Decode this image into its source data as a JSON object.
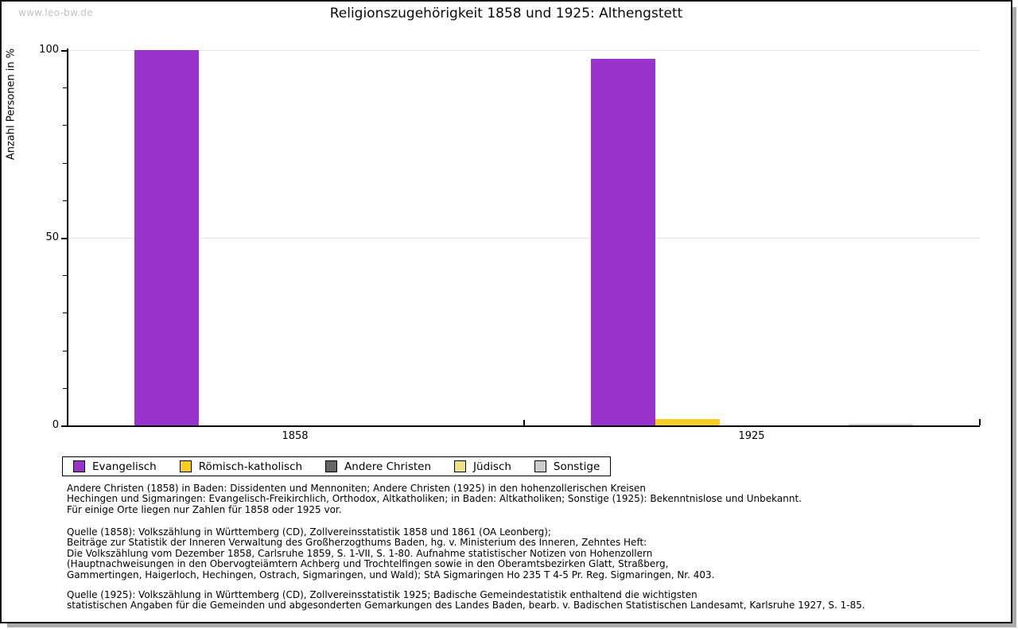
{
  "page": {
    "watermark": "www.leo-bw.de",
    "title": "Religionszugehörigkeit 1858 und 1925: Althengstett"
  },
  "chart_data": {
    "type": "bar",
    "title": "Religionszugehörigkeit 1858 und 1925: Althengstett",
    "xlabel": "",
    "ylabel": "Anzahl Personen in %",
    "ylim": [
      0,
      100
    ],
    "yticks_major": [
      0,
      50,
      100
    ],
    "ytick_minor_step": 10,
    "grid_values": [
      50,
      100
    ],
    "grid": "horizontal-major",
    "legend_position": "bottom",
    "categories": [
      "1858",
      "1925"
    ],
    "series": [
      {
        "name": "Evangelisch",
        "color": "#9933cc",
        "values": [
          100,
          97.7
        ]
      },
      {
        "name": "Römisch-katholisch",
        "color": "#f8cd25",
        "values": [
          0,
          1.6
        ]
      },
      {
        "name": "Andere Christen",
        "color": "#666666",
        "values": [
          0,
          0
        ]
      },
      {
        "name": "Jüdisch",
        "color": "#f0e187",
        "values": [
          0,
          0
        ]
      },
      {
        "name": "Sonstige",
        "color": "#cccccc",
        "values": [
          0,
          0.5
        ]
      }
    ]
  },
  "notes": [
    {
      "lines": [
        "Andere Christen (1858) in Baden: Dissidenten und Mennoniten; Andere Christen (1925) in den hohenzollerischen Kreisen",
        "Hechingen und Sigmaringen: Evangelisch-Freikirchlich, Orthodox, Altkatholiken; in Baden: Altkatholiken; Sonstige (1925): Bekenntnislose und Unbekannt.",
        "Für einige Orte liegen nur Zahlen für 1858 oder 1925 vor."
      ]
    },
    {
      "lines": [
        "Quelle (1858): Volkszählung in Württemberg (CD), Zollvereinsstatistik 1858 und 1861 (OA Leonberg);",
        "Beiträge zur Statistik der Inneren Verwaltung des Großherzogthums Baden, hg. v. Ministerium des Inneren, Zehntes Heft:",
        "Die Volkszählung vom Dezember 1858, Carlsruhe 1859, S. 1-VII, S. 1-80. Aufnahme statistischer Notizen von Hohenzollern",
        "(Hauptnachweisungen in den Obervogteiämtern Achberg und Trochtelfingen sowie in den Oberamtsbezirken Glatt, Straßberg,",
        "Gammertingen, Haigerloch, Hechingen, Ostrach, Sigmaringen, und Wald); StA Sigmaringen Ho 235 T 4-5 Pr. Reg. Sigmaringen, Nr. 403."
      ]
    },
    {
      "lines": [
        "Quelle (1925): Volkszählung in Württemberg (CD), Zollvereinsstatistik 1925; Badische Gemeindestatistik enthaltend die wichtigsten",
        "statistischen Angaben für die Gemeinden und abgesonderten Gemarkungen des Landes Baden, bearb. v. Badischen Statistischen Landesamt, Karlsruhe 1927, S. 1-85."
      ]
    }
  ]
}
